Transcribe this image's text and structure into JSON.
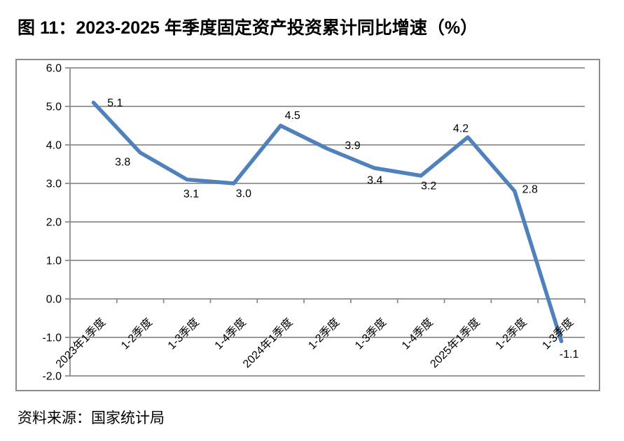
{
  "figure": {
    "title": "图 11：2023-2025 年季度固定资产投资累计同比增速（%）",
    "source": "资料来源：国家统计局"
  },
  "chart_data": {
    "type": "line",
    "title": "",
    "xlabel": "",
    "ylabel": "",
    "categories": [
      "2023年1季度",
      "1-2季度",
      "1-3季度",
      "1-4季度",
      "2024年1季度",
      "1-2季度",
      "1-3季度",
      "1-4季度",
      "2025年1季度",
      "1-2季度",
      "1-3季度"
    ],
    "values": [
      5.1,
      3.8,
      3.1,
      3.0,
      4.5,
      3.9,
      3.4,
      3.2,
      4.2,
      2.8,
      -1.1
    ],
    "data_labels": [
      "5.1",
      "3.8",
      "3.1",
      "3.0",
      "4.5",
      "3.9",
      "3.4",
      "3.2",
      "4.2",
      "2.8",
      "-1.1"
    ],
    "ylim": [
      -2.0,
      6.0
    ],
    "ytick_step": 1.0,
    "yticks": [
      "6.0",
      "5.0",
      "4.0",
      "3.0",
      "2.0",
      "1.0",
      "0.0",
      "-1.0",
      "-2.0"
    ],
    "grid": true,
    "legend": "none",
    "colors": {
      "line": "#4F81BD",
      "gridline": "#8C8C8C",
      "axis": "#8C8C8C",
      "frame": "#8C8C8C",
      "text": "#000000"
    }
  }
}
